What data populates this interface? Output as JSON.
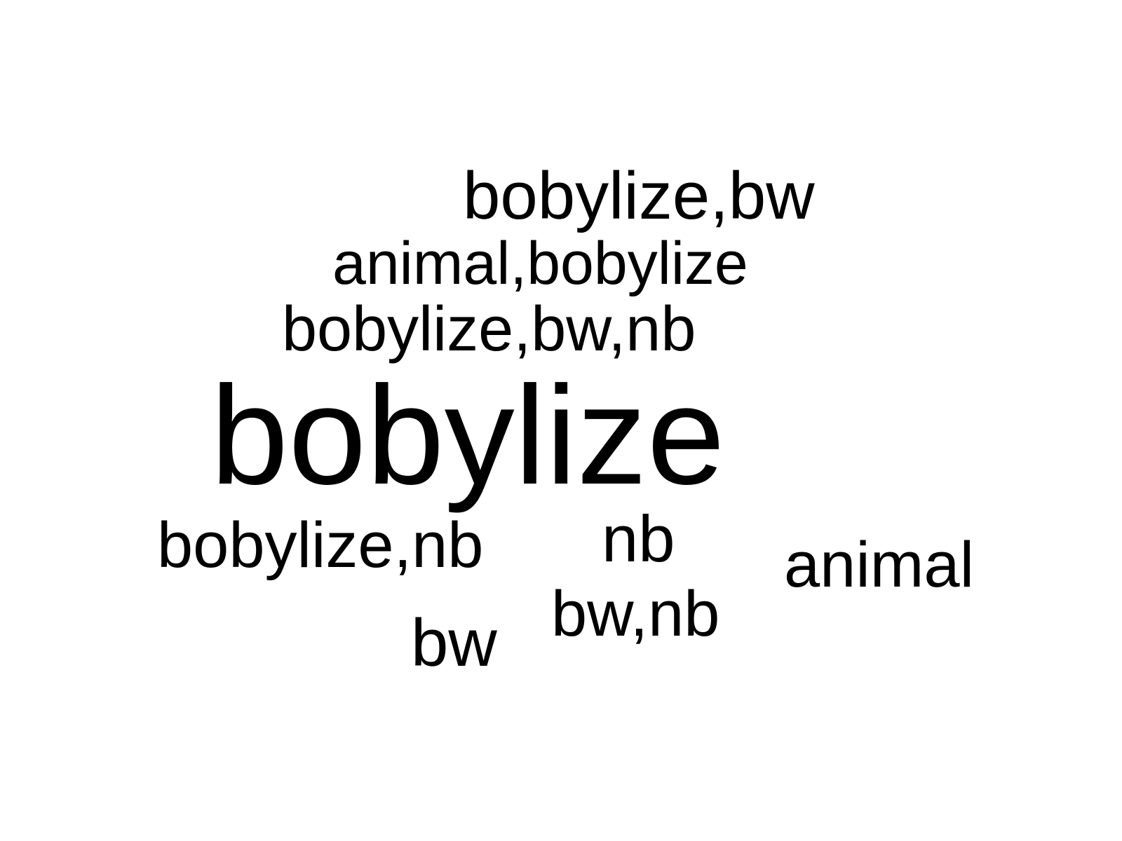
{
  "chart_data": {
    "type": "wordcloud",
    "words": [
      {
        "text": "bobylize,bw",
        "weight": 96
      },
      {
        "text": "animal,bobylize",
        "weight": 86
      },
      {
        "text": "bobylize,bw,nb",
        "weight": 90
      },
      {
        "text": "bobylize",
        "weight": 200
      },
      {
        "text": "bobylize,nb",
        "weight": 92
      },
      {
        "text": "nb",
        "weight": 94
      },
      {
        "text": "animal",
        "weight": 92
      },
      {
        "text": "bw,nb",
        "weight": 92
      },
      {
        "text": "bw",
        "weight": 96
      }
    ],
    "color": "#000000",
    "background": "#ffffff"
  }
}
